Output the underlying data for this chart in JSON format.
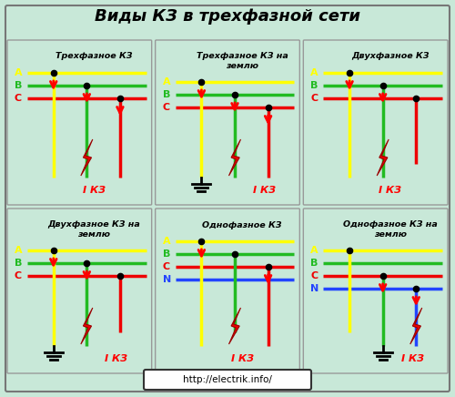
{
  "title": "Виды КЗ в трехфазной сети",
  "bg_color": "#c8e8d8",
  "panels": [
    {
      "title": "Трехфазное КЗ",
      "title_lines": 1,
      "col": 0,
      "row": 0,
      "phase_lines": [
        {
          "color": "#ffff00",
          "row": 0
        },
        {
          "color": "#22bb22",
          "row": 1
        },
        {
          "color": "#ee0000",
          "row": 2
        }
      ],
      "phase_labels": [
        "A",
        "B",
        "C"
      ],
      "neutral": false,
      "verticals": [
        {
          "col": 0,
          "phase": 0,
          "to_bottom": true,
          "color": "#ffff00"
        },
        {
          "col": 1,
          "phase": 1,
          "to_bottom": true,
          "color": "#22bb22"
        },
        {
          "col": 2,
          "phase": 2,
          "to_bottom": true,
          "color": "#ee0000"
        }
      ],
      "arrows": [
        0,
        1,
        2
      ],
      "lightning": true,
      "lightning_col": 1,
      "ground": false,
      "fault_label": "I КЗ"
    },
    {
      "title": "Трехфазное КЗ на\nземлю",
      "title_lines": 2,
      "col": 1,
      "row": 0,
      "phase_lines": [
        {
          "color": "#ffff00",
          "row": 0
        },
        {
          "color": "#22bb22",
          "row": 1
        },
        {
          "color": "#ee0000",
          "row": 2
        }
      ],
      "phase_labels": [
        "A",
        "B",
        "C"
      ],
      "neutral": false,
      "verticals": [
        {
          "col": 0,
          "phase": 0,
          "to_bottom": true,
          "color": "#ffff00"
        },
        {
          "col": 1,
          "phase": 1,
          "to_bottom": true,
          "color": "#22bb22"
        },
        {
          "col": 2,
          "phase": 2,
          "to_bottom": true,
          "color": "#ee0000"
        }
      ],
      "arrows": [
        0,
        1,
        2
      ],
      "lightning": true,
      "lightning_col": 1,
      "ground": true,
      "ground_vert_col": 0,
      "fault_label": "I КЗ"
    },
    {
      "title": "Двухфазное КЗ",
      "title_lines": 1,
      "col": 2,
      "row": 0,
      "phase_lines": [
        {
          "color": "#ffff00",
          "row": 0
        },
        {
          "color": "#22bb22",
          "row": 1
        },
        {
          "color": "#ee0000",
          "row": 2
        }
      ],
      "phase_labels": [
        "A",
        "B",
        "C"
      ],
      "neutral": false,
      "verticals": [
        {
          "col": 0,
          "phase": 0,
          "to_bottom": true,
          "color": "#ffff00"
        },
        {
          "col": 1,
          "phase": 1,
          "to_bottom": true,
          "color": "#22bb22"
        },
        {
          "col": 2,
          "phase": 2,
          "to_bottom": false,
          "color": "#ee0000"
        }
      ],
      "arrows": [
        0,
        1
      ],
      "lightning": true,
      "lightning_col": 1,
      "ground": false,
      "fault_label": "I КЗ"
    },
    {
      "title": "Двухфазное КЗ на\nземлю",
      "title_lines": 2,
      "col": 0,
      "row": 1,
      "phase_lines": [
        {
          "color": "#ffff00",
          "row": 0
        },
        {
          "color": "#22bb22",
          "row": 1
        },
        {
          "color": "#ee0000",
          "row": 2
        }
      ],
      "phase_labels": [
        "A",
        "B",
        "C"
      ],
      "neutral": false,
      "verticals": [
        {
          "col": 0,
          "phase": 0,
          "to_bottom": true,
          "color": "#ffff00"
        },
        {
          "col": 1,
          "phase": 1,
          "to_bottom": true,
          "color": "#22bb22"
        },
        {
          "col": 2,
          "phase": 2,
          "to_bottom": false,
          "color": "#ee0000"
        }
      ],
      "arrows": [
        0,
        1
      ],
      "lightning": true,
      "lightning_col": 1,
      "ground": true,
      "ground_vert_col": 0,
      "fault_label": "I КЗ"
    },
    {
      "title": "Однофазное КЗ",
      "title_lines": 1,
      "col": 1,
      "row": 1,
      "phase_lines": [
        {
          "color": "#ffff00",
          "row": 0
        },
        {
          "color": "#22bb22",
          "row": 1
        },
        {
          "color": "#ee0000",
          "row": 2
        },
        {
          "color": "#2244ff",
          "row": 3
        }
      ],
      "phase_labels": [
        "A",
        "B",
        "C",
        "N"
      ],
      "neutral": true,
      "verticals": [
        {
          "col": 0,
          "phase": 0,
          "to_bottom": true,
          "color": "#ffff00"
        },
        {
          "col": 1,
          "phase": 1,
          "to_bottom": false,
          "color": "#22bb22"
        },
        {
          "col": 2,
          "phase": 2,
          "to_bottom": true,
          "color": "#ee0000"
        }
      ],
      "arrows": [
        0,
        2
      ],
      "lightning": true,
      "lightning_col": 1,
      "ground": false,
      "fault_label": "I КЗ"
    },
    {
      "title": "Однофазное КЗ на\nземлю",
      "title_lines": 2,
      "col": 2,
      "row": 1,
      "phase_lines": [
        {
          "color": "#ffff00",
          "row": 0
        },
        {
          "color": "#22bb22",
          "row": 1
        },
        {
          "color": "#ee0000",
          "row": 2
        },
        {
          "color": "#2244ff",
          "row": 3
        }
      ],
      "phase_labels": [
        "A",
        "B",
        "C",
        "N"
      ],
      "neutral": true,
      "c_bold": true,
      "verticals": [
        {
          "col": 0,
          "phase": 0,
          "to_bottom": false,
          "color": "#ffff00"
        },
        {
          "col": 1,
          "phase": 2,
          "to_bottom": true,
          "color": "#22bb22"
        },
        {
          "col": 2,
          "phase": 3,
          "to_bottom": true,
          "color": "#2244ff"
        }
      ],
      "arrows": [
        1,
        2
      ],
      "lightning": true,
      "lightning_col": 2,
      "ground": true,
      "ground_vert_col": 1,
      "fault_label": "I КЗ"
    }
  ],
  "url_text": "http://electrik.info/"
}
